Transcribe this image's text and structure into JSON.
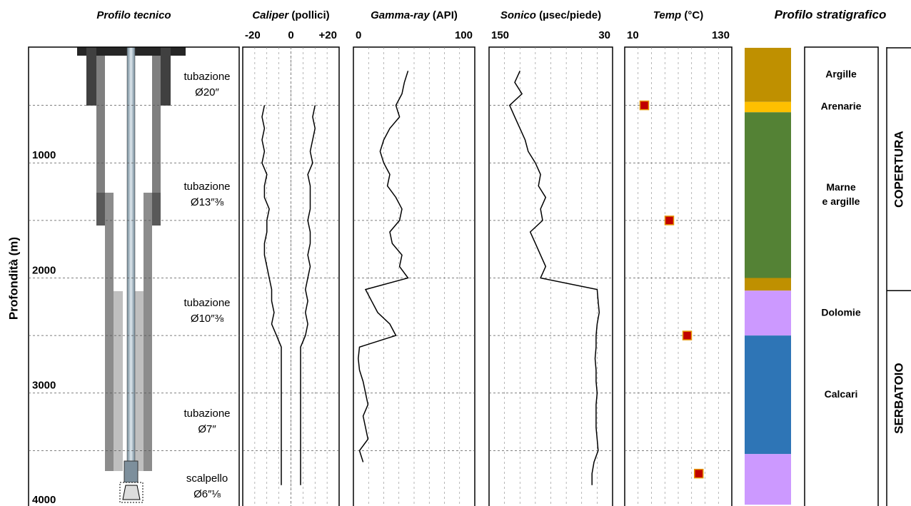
{
  "chart_data": [
    {
      "type": "well-schematic",
      "title": "Profilo tecnico",
      "y_label": "Profondità (m)",
      "ylim": [
        0,
        4000
      ],
      "yticks": [
        1000,
        2000,
        3000,
        4000
      ],
      "ygrid": [
        500,
        1000,
        1500,
        2000,
        2500,
        3000,
        3500
      ],
      "casing_labels": [
        [
          "tubazione",
          "Ø20″"
        ],
        [
          "tubazione",
          "Ø13″⅜"
        ],
        [
          "tubazione",
          "Ø10″⅜"
        ],
        [
          "tubazione",
          "Ø7″"
        ],
        [
          "scalpello",
          "Ø6″⅛"
        ]
      ]
    },
    {
      "type": "log",
      "title": "Caliper",
      "unit": "(pollici)",
      "xlim": [
        -20,
        20
      ],
      "xticks": [
        -20,
        0,
        {
          "value": 20,
          "label": "+20"
        }
      ],
      "ylim": [
        0,
        4000
      ],
      "ygrid": [
        500,
        1000,
        1500,
        2000,
        2500,
        3000,
        3500
      ],
      "depth": [
        500,
        600,
        700,
        800,
        900,
        1000,
        1100,
        1200,
        1300,
        1400,
        1500,
        1600,
        1700,
        1800,
        1900,
        2000,
        2100,
        2200,
        2300,
        2400,
        2500,
        2600,
        2700,
        2800,
        2900,
        3000,
        3100,
        3200,
        3300,
        3400,
        3500,
        3600,
        3700,
        3800
      ],
      "series": [
        {
          "color": "#000000",
          "values": [
            -11,
            -12,
            -11,
            -12,
            -11,
            -12,
            -10,
            -11,
            -11,
            -9,
            -10,
            -10,
            -11,
            -11,
            -10,
            -9,
            -8,
            -8,
            -7,
            -8,
            -6,
            -4,
            -4,
            -4,
            -4,
            -4,
            -4,
            -4,
            -4,
            -4,
            -4,
            -4,
            -4,
            -4
          ]
        },
        {
          "color": "#000000",
          "values": [
            10,
            9,
            10,
            9,
            8,
            9,
            7,
            8,
            8,
            8,
            7,
            8,
            8,
            7,
            8,
            7,
            6,
            7,
            6,
            7,
            6,
            4,
            4,
            4,
            4,
            4,
            4,
            4,
            4,
            4,
            4,
            4,
            4,
            4
          ]
        }
      ]
    },
    {
      "type": "log",
      "title": "Gamma-ray",
      "unit": "(API)",
      "xlim": [
        0,
        100
      ],
      "xticks": [
        0,
        100
      ],
      "ylim": [
        0,
        4000
      ],
      "ygrid": [
        500,
        1000,
        1500,
        2000,
        2500,
        3000,
        3500
      ],
      "depth": [
        200,
        300,
        400,
        500,
        600,
        700,
        800,
        900,
        1000,
        1100,
        1200,
        1300,
        1400,
        1500,
        1600,
        1700,
        1800,
        1900,
        2000,
        2100,
        2200,
        2300,
        2400,
        2500,
        2600,
        2700,
        2800,
        2900,
        3000,
        3100,
        3200,
        3300,
        3400,
        3500,
        3600
      ],
      "series": [
        {
          "color": "#000000",
          "values": [
            45,
            42,
            40,
            35,
            38,
            30,
            25,
            22,
            25,
            30,
            28,
            35,
            40,
            38,
            30,
            32,
            40,
            38,
            45,
            10,
            15,
            20,
            30,
            35,
            5,
            4,
            5,
            8,
            10,
            12,
            8,
            10,
            12,
            5,
            8
          ]
        }
      ]
    },
    {
      "type": "log",
      "title": "Sonico",
      "unit": "(µsec/piede)",
      "xlim": [
        150,
        30
      ],
      "xticks": [
        150,
        30
      ],
      "ylim": [
        0,
        4000
      ],
      "ygrid": [
        500,
        1000,
        1500,
        2000,
        2500,
        3000,
        3500
      ],
      "depth": [
        200,
        300,
        400,
        500,
        600,
        700,
        800,
        900,
        1000,
        1100,
        1200,
        1300,
        1400,
        1500,
        1600,
        1700,
        1800,
        1900,
        2000,
        2100,
        2200,
        2300,
        2400,
        2500,
        2600,
        2700,
        2800,
        2900,
        3000,
        3100,
        3200,
        3300,
        3400,
        3500,
        3600,
        3700,
        3800
      ],
      "series": [
        {
          "color": "#000000",
          "values": [
            120,
            125,
            118,
            130,
            125,
            120,
            115,
            112,
            105,
            100,
            102,
            95,
            100,
            98,
            110,
            105,
            100,
            95,
            100,
            45,
            44,
            43,
            45,
            46,
            46,
            47,
            46,
            46,
            45,
            46,
            46,
            46,
            45,
            44,
            48,
            50,
            50
          ]
        }
      ]
    },
    {
      "type": "scatter",
      "title": "Temp",
      "unit": "(°C)",
      "xlim": [
        10,
        130
      ],
      "xticks": [
        10,
        130
      ],
      "ylim": [
        0,
        4000
      ],
      "ygrid": [
        500,
        1000,
        1500,
        2000,
        2500,
        3000,
        3500
      ],
      "y": [
        500,
        1500,
        2500,
        3700
      ],
      "values": [
        32,
        60,
        80,
        93
      ],
      "color": "#c00000"
    },
    {
      "type": "strat",
      "title": "Profilo stratigrafico",
      "ylim": [
        0,
        4000
      ],
      "layers": [
        {
          "label": [
            "Argille"
          ],
          "top": 0,
          "base": 470,
          "color": "#bf9000"
        },
        {
          "label": [
            "Arenarie"
          ],
          "top": 470,
          "base": 560,
          "color": "#ffc000"
        },
        {
          "label": [
            "Marne",
            "e argille"
          ],
          "top": 560,
          "base": 2000,
          "color": "#548235"
        },
        {
          "label": null,
          "top": 2000,
          "base": 2110,
          "color": "#bf9000"
        },
        {
          "label": [
            "Dolomie"
          ],
          "top": 2110,
          "base": 2500,
          "color": "#cc99ff"
        },
        {
          "label": [
            "Calcari"
          ],
          "top": 2500,
          "base": 3530,
          "color": "#2e75b6"
        },
        {
          "label": null,
          "top": 3530,
          "base": 3970,
          "color": "#cc99ff"
        }
      ],
      "units": [
        {
          "label": "COPERTURA",
          "top": 0,
          "base": 2110
        },
        {
          "label": "SERBATOIO",
          "top": 2110,
          "base": 4000
        }
      ]
    }
  ]
}
